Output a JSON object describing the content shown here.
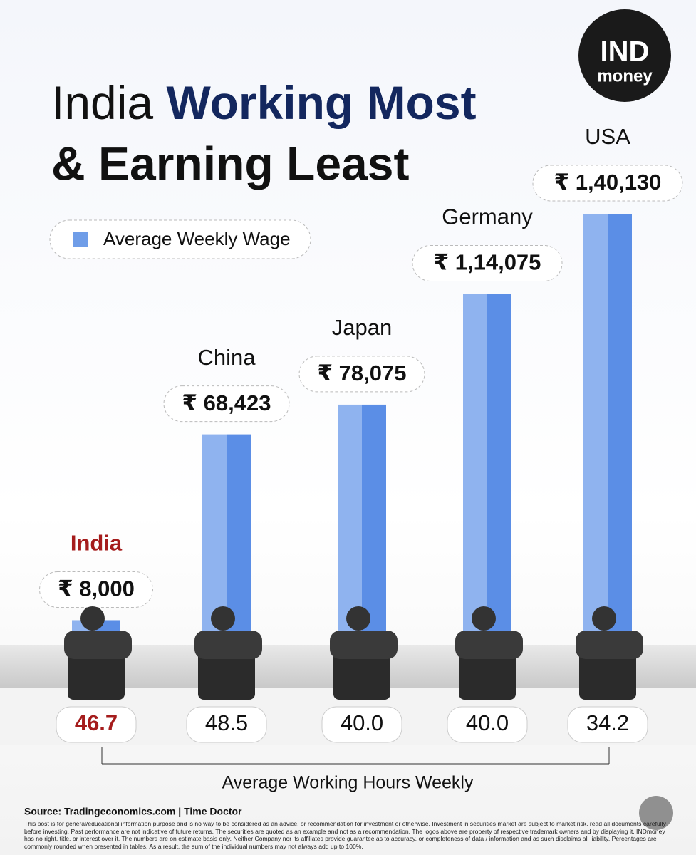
{
  "chart_data": {
    "type": "bar",
    "title": [
      "India",
      "Working Most",
      "& Earning Least"
    ],
    "logo": [
      "IND",
      "money"
    ],
    "categories": [
      "India",
      "China",
      "Japan",
      "Germany",
      "USA"
    ],
    "series": [
      {
        "name": "Average Weekly Wage",
        "color": "#5b8ee6",
        "values": [
          8000,
          68423,
          78075,
          114075,
          140130
        ],
        "value_labels": [
          "₹ 8,000",
          "₹ 68,423",
          "₹ 78,075",
          "₹ 1,14,075",
          "₹ 1,40,130"
        ]
      }
    ],
    "hours": {
      "name": "Average Working Hours Weekly",
      "values": [
        46.7,
        48.5,
        40.0,
        40.0,
        34.2
      ],
      "value_labels": [
        "46.7",
        "48.5",
        "40.0",
        "40.0",
        "34.2"
      ]
    },
    "source": "Source: Tradingeconomics.com | Time Doctor",
    "disclaimer": "This post is for general/educational information purpose and is no way to be considered as an advice, or recommendation for investment or otherwise. Investment in securities market are subject to market risk, read all documents carefully before investing. Past performance are not indicative of future returns. The securities are quoted as an example and not as a recommendation. The logos above are property of respective trademark owners and by displaying it, INDmoney has no right, title, or interest over it. The numbers are on estimate basis only. Neither Company nor its affiliates provide guarantee as to accuracy, or completeness of data / information and as such disclaims all liability. Percentages are commonly rounded when presented in tables. As a result, the sum of the individual numbers may not always add up to 100%."
  }
}
